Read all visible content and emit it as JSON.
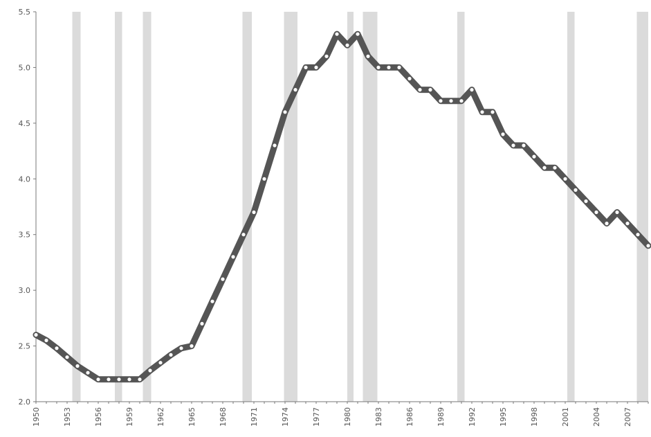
{
  "chart_data": {
    "type": "line",
    "title": "",
    "xlabel": "",
    "ylabel": "",
    "xlim": [
      1950,
      2009
    ],
    "ylim": [
      2.0,
      5.5
    ],
    "grid": false,
    "y_ticks": [
      "2.0",
      "2.5",
      "3.0",
      "3.5",
      "4.0",
      "4.5",
      "5.0",
      "5.5"
    ],
    "x_ticks": [
      "1950",
      "1953",
      "1956",
      "1959",
      "1962",
      "1965",
      "1968",
      "1971",
      "1974",
      "1977",
      "1980",
      "1983",
      "1986",
      "1989",
      "1992",
      "1995",
      "1998",
      "2001",
      "2004",
      "2007"
    ],
    "shaded_periods": [
      [
        1953.5,
        1954.3
      ],
      [
        1957.6,
        1958.3
      ],
      [
        1960.3,
        1961.1
      ],
      [
        1969.9,
        1970.8
      ],
      [
        1973.9,
        1975.2
      ],
      [
        1980.0,
        1980.6
      ],
      [
        1981.5,
        1982.9
      ],
      [
        1990.6,
        1991.3
      ],
      [
        2001.2,
        2001.9
      ],
      [
        2007.9,
        2009.0
      ]
    ],
    "series": [
      {
        "x": [
          1950,
          1951,
          1952,
          1953,
          1954,
          1955,
          1956,
          1957,
          1958,
          1959,
          1960,
          1961,
          1962,
          1963,
          1964,
          1965,
          1966,
          1967,
          1968,
          1969,
          1970,
          1971,
          1972,
          1973,
          1974,
          1975,
          1976,
          1977,
          1978,
          1979,
          1980,
          1981,
          1982,
          1983,
          1984,
          1985,
          1986,
          1987,
          1988,
          1989,
          1990,
          1991,
          1992,
          1993,
          1994,
          1995,
          1996,
          1997,
          1998,
          1999,
          2000,
          2001,
          2002,
          2003,
          2004,
          2005,
          2006,
          2007,
          2008,
          2009
        ],
        "values": [
          2.6,
          2.55,
          2.48,
          2.4,
          2.32,
          2.26,
          2.2,
          2.2,
          2.2,
          2.2,
          2.2,
          2.28,
          2.35,
          2.42,
          2.48,
          2.5,
          2.7,
          2.9,
          3.1,
          3.3,
          3.5,
          3.7,
          4.0,
          4.3,
          4.6,
          4.8,
          5.0,
          5.0,
          5.1,
          5.3,
          5.2,
          5.3,
          5.1,
          5.0,
          5.0,
          5.0,
          4.9,
          4.8,
          4.8,
          4.7,
          4.7,
          4.7,
          4.8,
          4.6,
          4.6,
          4.4,
          4.3,
          4.3,
          4.2,
          4.1,
          4.1,
          4.0,
          3.9,
          3.8,
          3.7,
          3.6,
          3.7,
          3.6,
          3.5,
          3.4
        ]
      }
    ]
  }
}
